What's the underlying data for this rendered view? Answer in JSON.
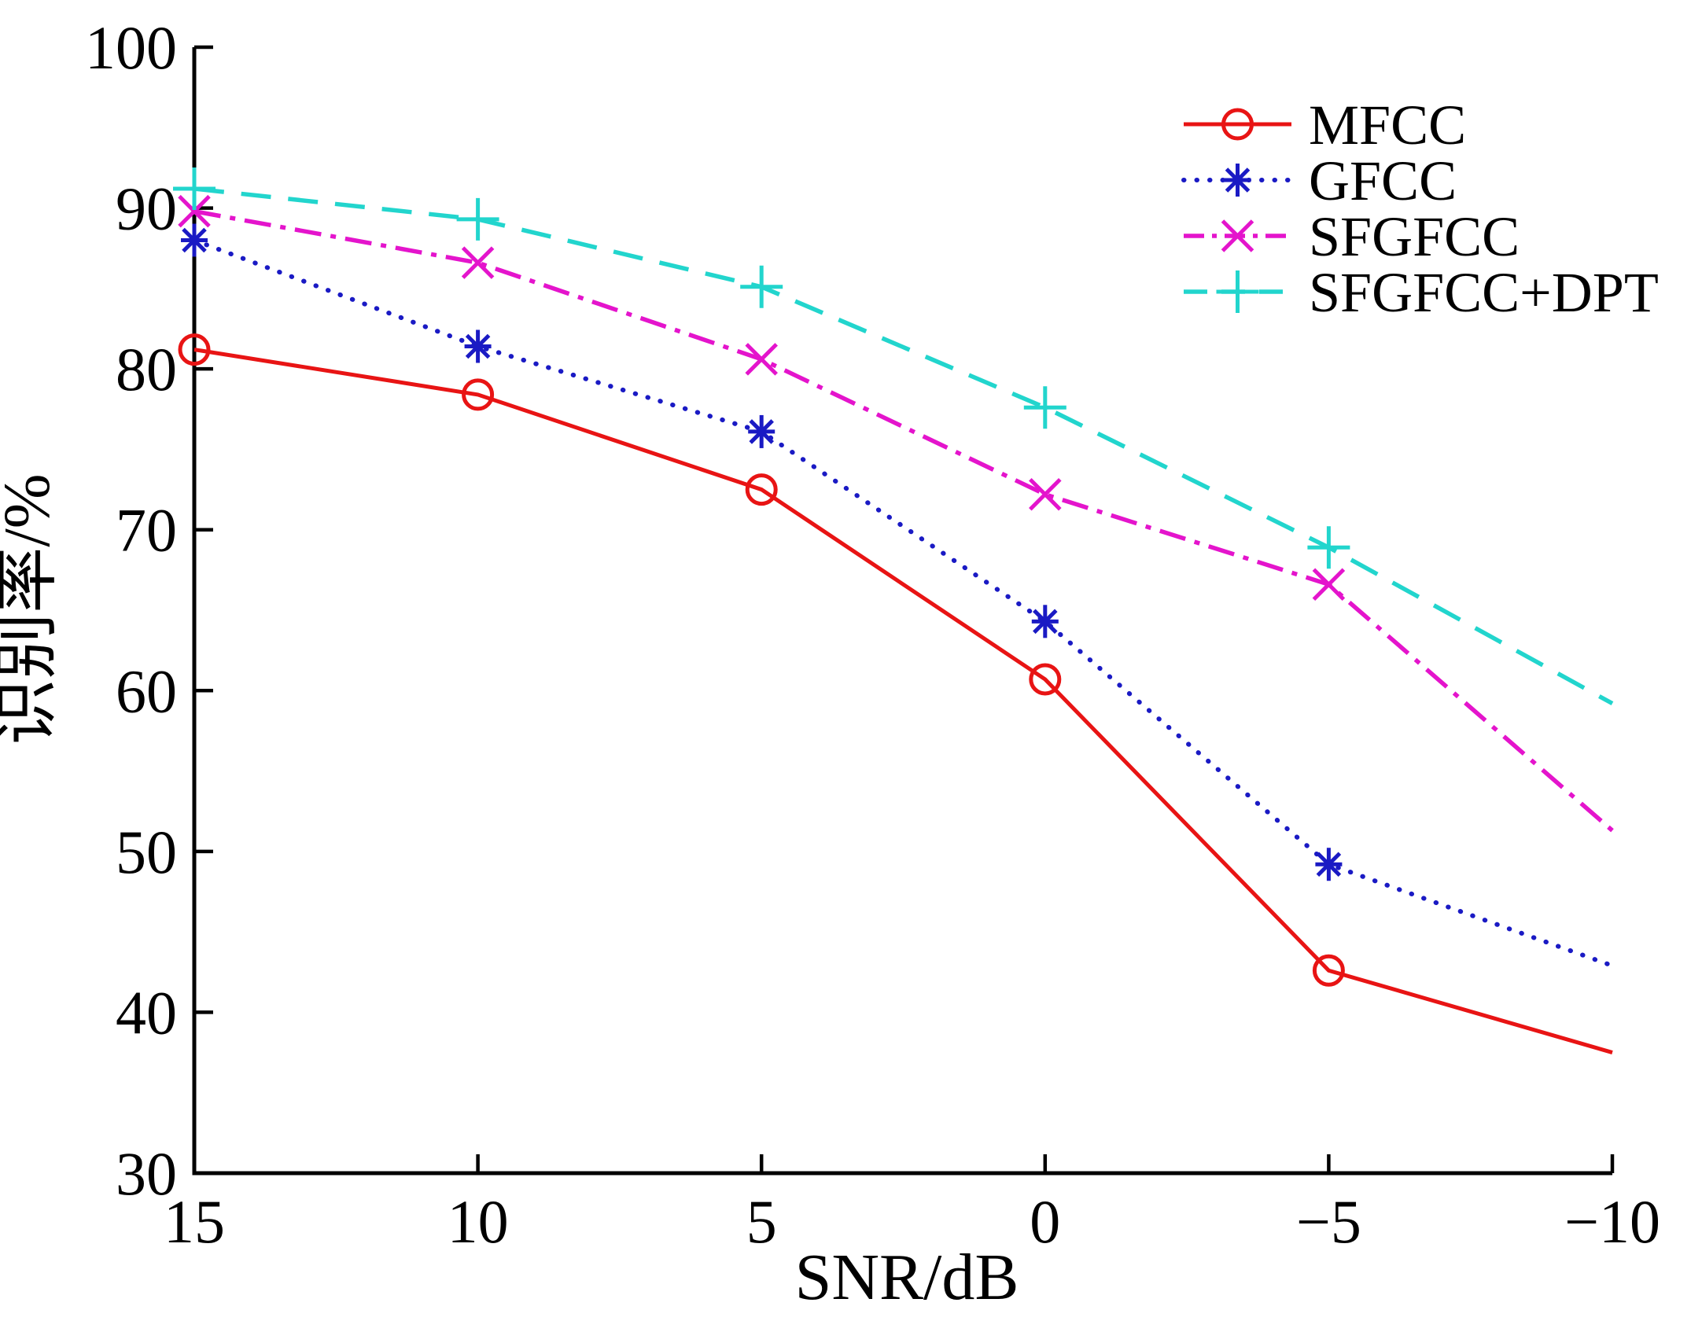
{
  "chart_data": {
    "type": "line",
    "title": "",
    "xlabel": "SNR/dB",
    "ylabel": "识别率/%",
    "x": [
      15,
      10,
      5,
      0,
      -5,
      -10
    ],
    "x_tick_labels": [
      "15",
      "10",
      "5",
      "0",
      "−5",
      "−10"
    ],
    "y_ticks": [
      30,
      40,
      50,
      60,
      70,
      80,
      90,
      100
    ],
    "y_tick_labels": [
      "30",
      "40",
      "50",
      "60",
      "70",
      "80",
      "90",
      "100"
    ],
    "xlim": [
      15,
      -10
    ],
    "ylim": [
      30,
      100
    ],
    "grid": false,
    "legend_position": "top-right",
    "markers_at_last_point": false,
    "axis_color": "#000000",
    "series": [
      {
        "name": "MFCC",
        "color": "#e81414",
        "line_style": "solid",
        "marker": "circle",
        "values": [
          81.2,
          78.4,
          72.5,
          60.7,
          42.6,
          37.5
        ]
      },
      {
        "name": "GFCC",
        "color": "#1a1ac4",
        "line_style": "dotted",
        "marker": "asterisk",
        "values": [
          88.0,
          81.4,
          76.1,
          64.3,
          49.2,
          42.9
        ]
      },
      {
        "name": "SFGFCC",
        "color": "#e414cc",
        "line_style": "dash-dot",
        "marker": "x",
        "values": [
          89.8,
          86.6,
          80.6,
          72.2,
          66.6,
          51.3
        ]
      },
      {
        "name": "SFGFCC+DPT",
        "color": "#22d5cd",
        "line_style": "dashed",
        "marker": "plus",
        "values": [
          91.2,
          89.3,
          85.1,
          77.6,
          68.9,
          59.2
        ]
      }
    ]
  }
}
